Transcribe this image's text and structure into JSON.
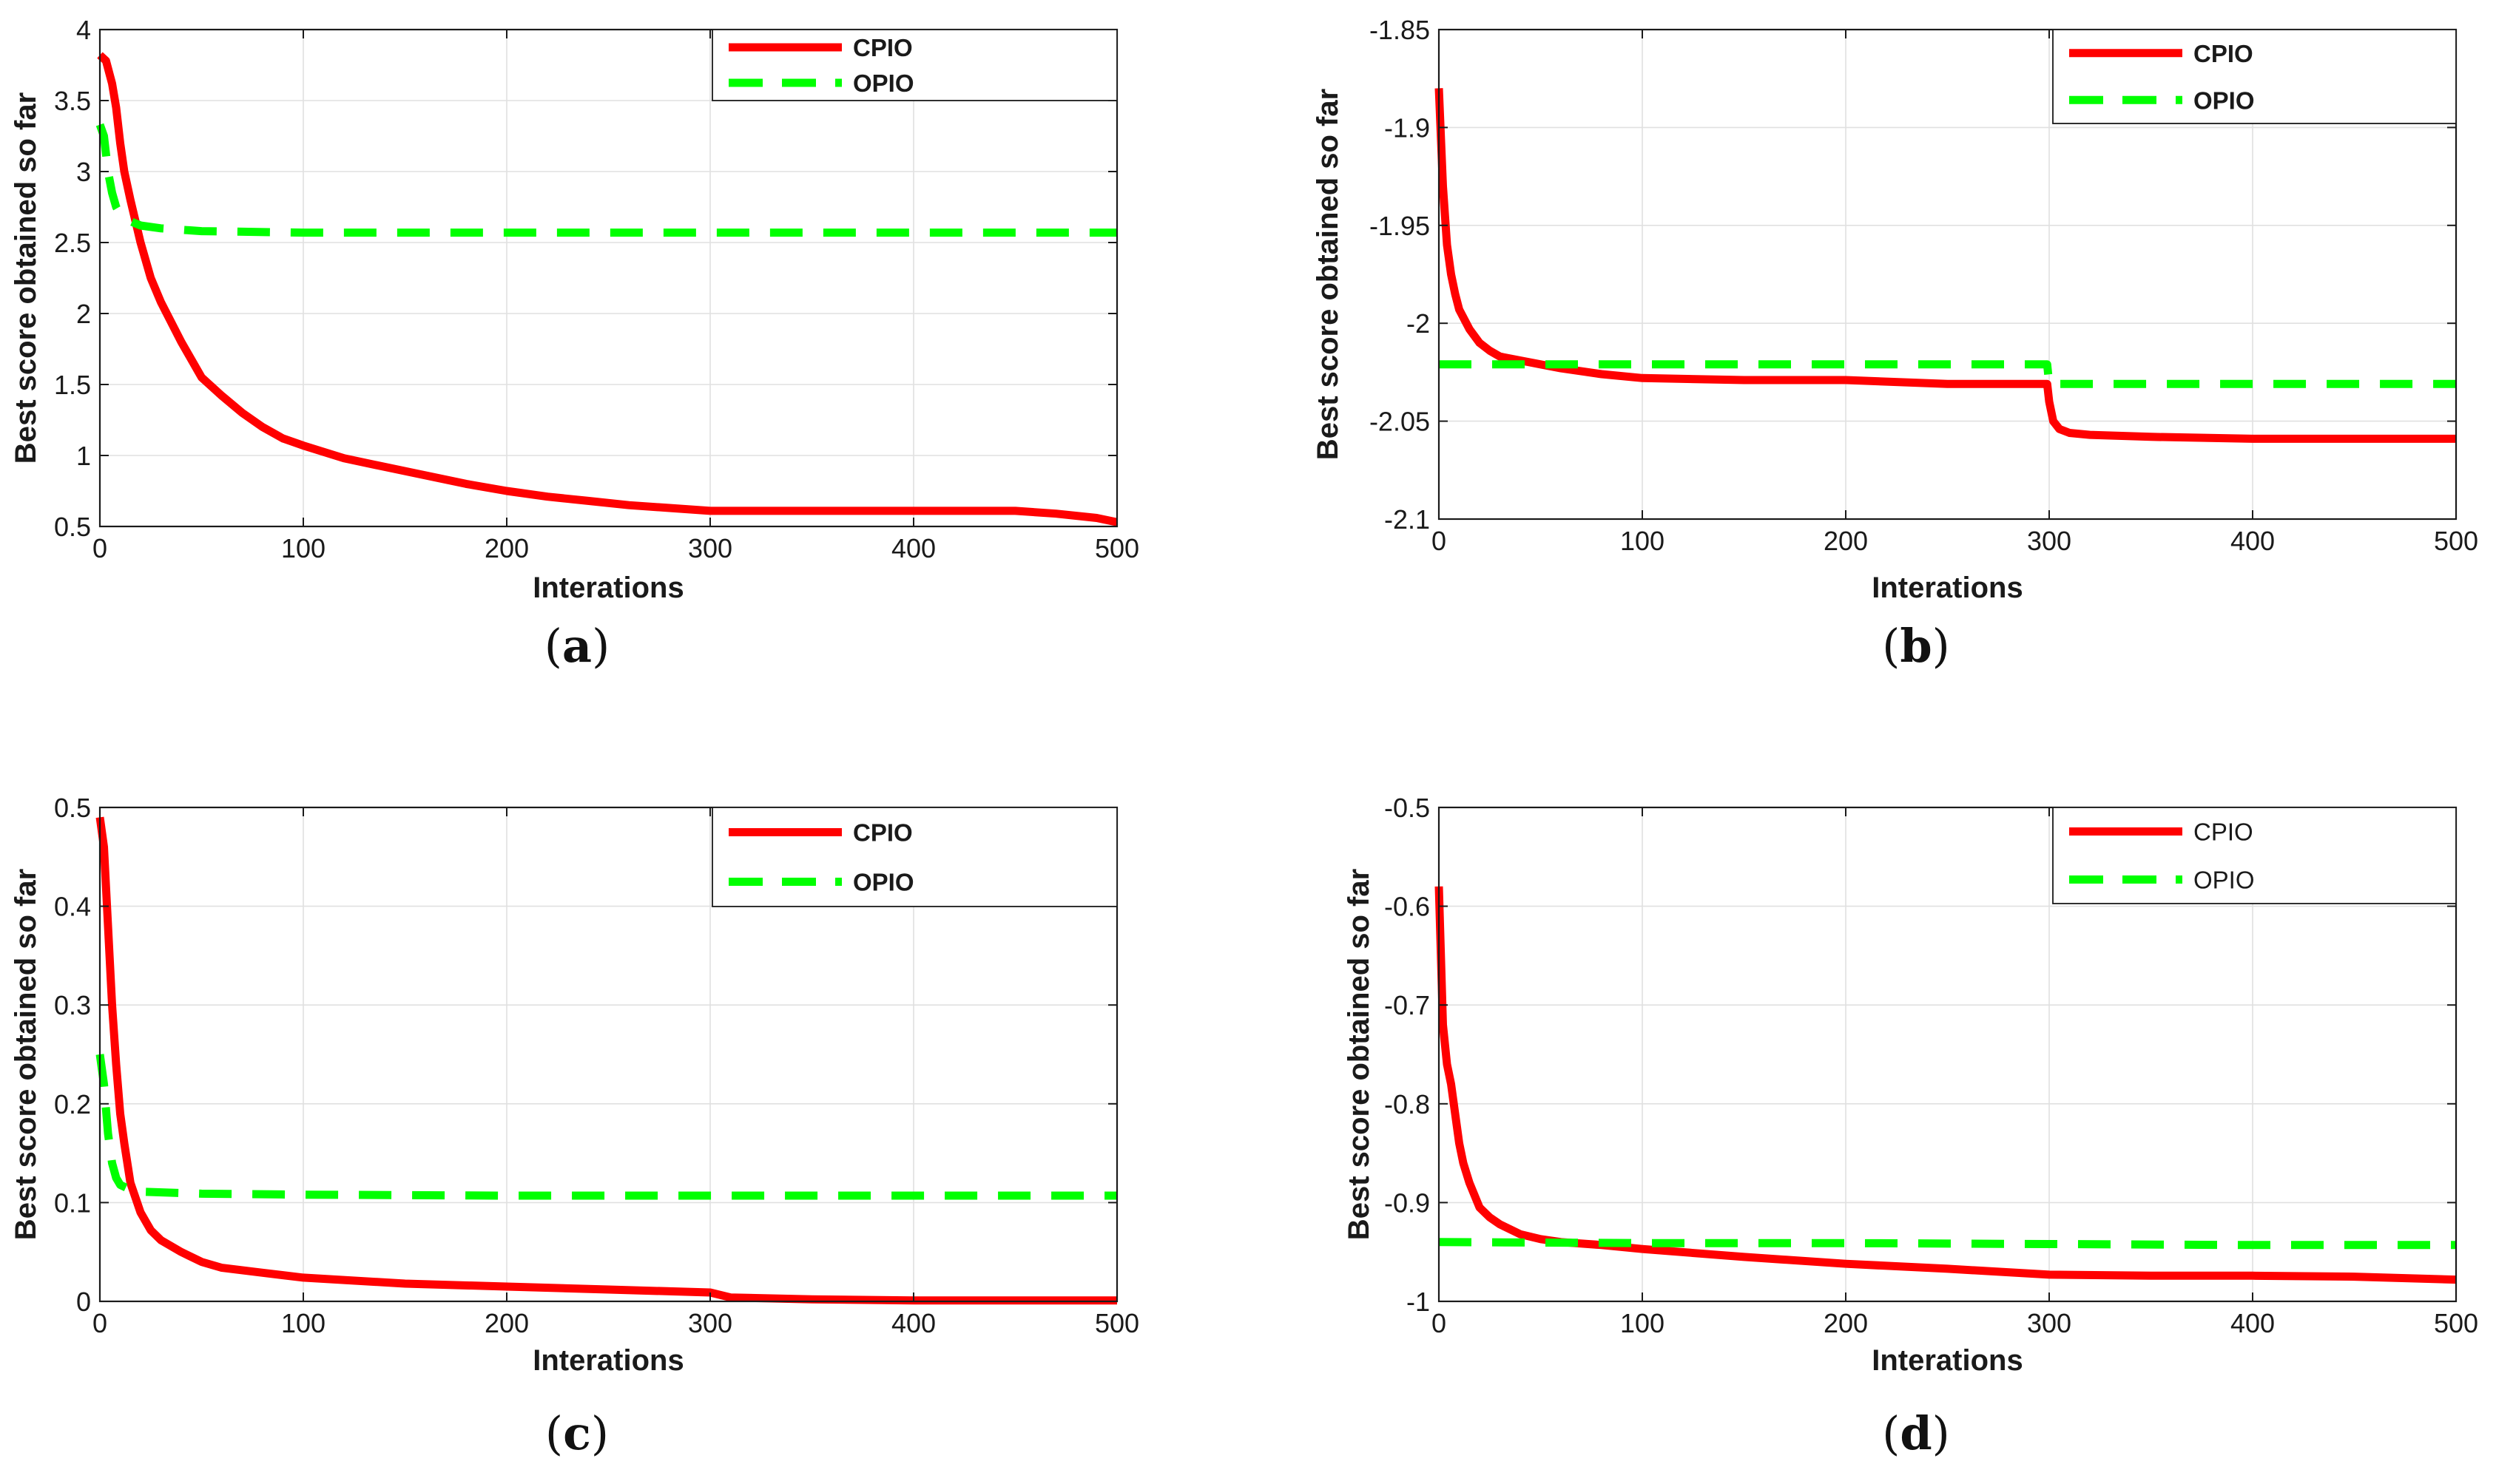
{
  "chart_data": [
    {
      "type": "line",
      "caption": "a",
      "xlabel": "Interations",
      "ylabel": "Best score obtained so far",
      "xlim": [
        0,
        500
      ],
      "ylim": [
        0.5,
        4
      ],
      "xticks": [
        "0",
        "100",
        "200",
        "300",
        "400",
        "500"
      ],
      "yticks": [
        "0.5",
        "1",
        "1.5",
        "2",
        "2.5",
        "3",
        "3.5",
        "4"
      ],
      "grid": true,
      "legend_position": "top-right",
      "legend_bold": true,
      "series": [
        {
          "name": "CPIO",
          "color": "#ff0000",
          "style": "solid",
          "x": [
            0,
            3,
            6,
            8,
            10,
            12,
            15,
            20,
            25,
            30,
            40,
            50,
            60,
            70,
            80,
            90,
            100,
            120,
            140,
            160,
            180,
            200,
            220,
            240,
            260,
            280,
            300,
            350,
            400,
            450,
            470,
            490,
            500
          ],
          "y": [
            3.82,
            3.78,
            3.62,
            3.45,
            3.2,
            3.0,
            2.8,
            2.5,
            2.25,
            2.08,
            1.8,
            1.55,
            1.42,
            1.3,
            1.2,
            1.12,
            1.07,
            0.98,
            0.92,
            0.86,
            0.8,
            0.75,
            0.71,
            0.68,
            0.65,
            0.63,
            0.61,
            0.61,
            0.61,
            0.61,
            0.59,
            0.56,
            0.53
          ]
        },
        {
          "name": "OPIO",
          "color": "#00ff00",
          "style": "dashed",
          "x": [
            0,
            2,
            4,
            6,
            8,
            10,
            15,
            20,
            30,
            50,
            100,
            200,
            300,
            400,
            500
          ],
          "y": [
            3.33,
            3.25,
            3.0,
            2.85,
            2.75,
            2.7,
            2.65,
            2.62,
            2.6,
            2.58,
            2.57,
            2.57,
            2.57,
            2.57,
            2.57
          ]
        }
      ]
    },
    {
      "type": "line",
      "caption": "b",
      "xlabel": "Interations",
      "ylabel": "Best score obtained so far",
      "xlim": [
        0,
        500
      ],
      "ylim": [
        -2.1,
        -1.85
      ],
      "xticks": [
        "0",
        "100",
        "200",
        "300",
        "400",
        "500"
      ],
      "yticks": [
        "-2.1",
        "-2.05",
        "-2",
        "-1.95",
        "-1.9",
        "-1.85"
      ],
      "grid": true,
      "legend_position": "top-right",
      "legend_bold": true,
      "series": [
        {
          "name": "CPIO",
          "color": "#ff0000",
          "style": "solid",
          "x": [
            0,
            2,
            4,
            6,
            8,
            10,
            15,
            20,
            25,
            30,
            40,
            50,
            60,
            80,
            100,
            150,
            200,
            250,
            299,
            300,
            302,
            305,
            310,
            320,
            350,
            400,
            450,
            500
          ],
          "y": [
            -1.88,
            -1.93,
            -1.96,
            -1.975,
            -1.985,
            -1.993,
            -2.003,
            -2.01,
            -2.014,
            -2.017,
            -2.019,
            -2.021,
            -2.023,
            -2.026,
            -2.028,
            -2.029,
            -2.029,
            -2.031,
            -2.031,
            -2.04,
            -2.05,
            -2.054,
            -2.056,
            -2.057,
            -2.058,
            -2.059,
            -2.059,
            -2.059
          ]
        },
        {
          "name": "OPIO",
          "color": "#00ff00",
          "style": "dashed",
          "x": [
            0,
            100,
            200,
            299,
            300,
            310,
            400,
            500
          ],
          "y": [
            -2.021,
            -2.021,
            -2.021,
            -2.021,
            -2.031,
            -2.031,
            -2.031,
            -2.031
          ]
        }
      ]
    },
    {
      "type": "line",
      "caption": "c",
      "xlabel": "Interations",
      "ylabel": "Best score obtained so far",
      "xlim": [
        0,
        500
      ],
      "ylim": [
        0,
        0.5
      ],
      "xticks": [
        "0",
        "100",
        "200",
        "300",
        "400",
        "500"
      ],
      "yticks": [
        "0",
        "0.1",
        "0.2",
        "0.3",
        "0.4",
        "0.5"
      ],
      "grid": true,
      "legend_position": "top-right",
      "legend_bold": true,
      "series": [
        {
          "name": "CPIO",
          "color": "#ff0000",
          "style": "solid",
          "x": [
            0,
            2,
            4,
            6,
            8,
            10,
            12,
            15,
            20,
            25,
            30,
            40,
            50,
            60,
            80,
            100,
            150,
            200,
            250,
            300,
            310,
            350,
            400,
            450,
            500
          ],
          "y": [
            0.49,
            0.46,
            0.38,
            0.3,
            0.24,
            0.19,
            0.16,
            0.12,
            0.09,
            0.072,
            0.062,
            0.05,
            0.04,
            0.034,
            0.029,
            0.024,
            0.018,
            0.015,
            0.012,
            0.009,
            0.004,
            0.002,
            0.001,
            0.001,
            0.001
          ]
        },
        {
          "name": "OPIO",
          "color": "#00ff00",
          "style": "dashed",
          "x": [
            0,
            2,
            4,
            6,
            8,
            10,
            15,
            20,
            50,
            100,
            200,
            300,
            400,
            500
          ],
          "y": [
            0.25,
            0.22,
            0.17,
            0.14,
            0.125,
            0.118,
            0.113,
            0.111,
            0.109,
            0.108,
            0.107,
            0.107,
            0.107,
            0.107
          ]
        }
      ]
    },
    {
      "type": "line",
      "caption": "d",
      "xlabel": "Interations",
      "ylabel": "Best score obtained so far",
      "xlim": [
        0,
        500
      ],
      "ylim": [
        -1,
        -0.5
      ],
      "xticks": [
        "0",
        "100",
        "200",
        "300",
        "400",
        "500"
      ],
      "yticks": [
        "-1",
        "-0.9",
        "-0.8",
        "-0.7",
        "-0.6",
        "-0.5"
      ],
      "grid": true,
      "legend_position": "top-right",
      "legend_bold": false,
      "series": [
        {
          "name": "CPIO",
          "color": "#ff0000",
          "style": "solid",
          "x": [
            0,
            2,
            4,
            6,
            8,
            10,
            12,
            15,
            20,
            25,
            30,
            40,
            50,
            60,
            80,
            100,
            150,
            200,
            250,
            300,
            350,
            400,
            450,
            500
          ],
          "y": [
            -0.58,
            -0.72,
            -0.76,
            -0.78,
            -0.81,
            -0.84,
            -0.86,
            -0.88,
            -0.905,
            -0.915,
            -0.922,
            -0.932,
            -0.937,
            -0.94,
            -0.943,
            -0.947,
            -0.955,
            -0.962,
            -0.967,
            -0.973,
            -0.974,
            -0.974,
            -0.975,
            -0.978
          ]
        },
        {
          "name": "OPIO",
          "color": "#00ff00",
          "style": "dashed",
          "x": [
            0,
            100,
            200,
            300,
            400,
            500
          ],
          "y": [
            -0.94,
            -0.941,
            -0.941,
            -0.942,
            -0.943,
            -0.943
          ]
        }
      ]
    }
  ]
}
